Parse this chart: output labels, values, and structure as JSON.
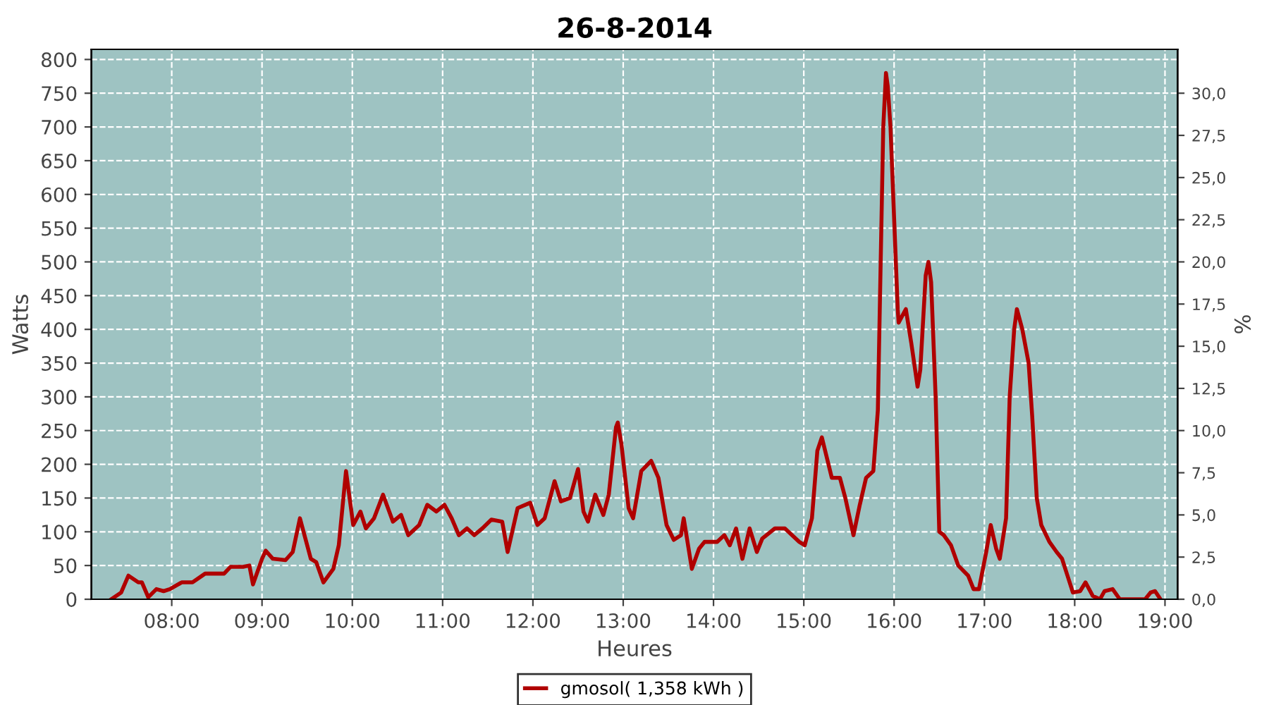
{
  "chart_data": {
    "type": "line",
    "title": "26-8-2014",
    "xlabel": "Heures",
    "ylabel": "Watts",
    "y2label": "%",
    "xlim": [
      7.11,
      19.14
    ],
    "xticks": [
      {
        "value": 8,
        "label": "08:00"
      },
      {
        "value": 9,
        "label": "09:00"
      },
      {
        "value": 10,
        "label": "10:00"
      },
      {
        "value": 11,
        "label": "11:00"
      },
      {
        "value": 12,
        "label": "12:00"
      },
      {
        "value": 13,
        "label": "13:00"
      },
      {
        "value": 14,
        "label": "14:00"
      },
      {
        "value": 15,
        "label": "15:00"
      },
      {
        "value": 16,
        "label": "16:00"
      },
      {
        "value": 17,
        "label": "17:00"
      },
      {
        "value": 18,
        "label": "18:00"
      },
      {
        "value": 19,
        "label": "19:00"
      }
    ],
    "ylim": [
      0,
      815
    ],
    "yticks": [
      0,
      50,
      100,
      150,
      200,
      250,
      300,
      350,
      400,
      450,
      500,
      550,
      600,
      650,
      700,
      750,
      800
    ],
    "y2lim": [
      0,
      32.6
    ],
    "y2ticks": [
      {
        "value": 0,
        "label": "0,0"
      },
      {
        "value": 2.5,
        "label": "2,5"
      },
      {
        "value": 5,
        "label": "5,0"
      },
      {
        "value": 7.5,
        "label": "7,5"
      },
      {
        "value": 10,
        "label": "10,0"
      },
      {
        "value": 12.5,
        "label": "12,5"
      },
      {
        "value": 15,
        "label": "15,0"
      },
      {
        "value": 17.5,
        "label": "17,5"
      },
      {
        "value": 20,
        "label": "20,0"
      },
      {
        "value": 22.5,
        "label": "22,5"
      },
      {
        "value": 25,
        "label": "25,0"
      },
      {
        "value": 27.5,
        "label": "27,5"
      },
      {
        "value": 30,
        "label": "30,0"
      }
    ],
    "grid": true,
    "legend": "bottom",
    "line_style": "solid",
    "marker": "none",
    "series": [
      {
        "name": "gmosol( 1,358 kWh )",
        "color": "#b00000",
        "x": [
          7.33,
          7.44,
          7.52,
          7.63,
          7.67,
          7.74,
          7.83,
          7.91,
          7.98,
          8.11,
          8.23,
          8.37,
          8.58,
          8.65,
          8.79,
          8.86,
          8.9,
          9.0,
          9.04,
          9.12,
          9.26,
          9.34,
          9.42,
          9.54,
          9.6,
          9.68,
          9.79,
          9.85,
          9.93,
          10.01,
          10.09,
          10.15,
          10.24,
          10.34,
          10.45,
          10.54,
          10.62,
          10.74,
          10.83,
          10.93,
          11.02,
          11.1,
          11.18,
          11.27,
          11.35,
          11.44,
          11.54,
          11.66,
          11.72,
          11.83,
          11.97,
          12.05,
          12.13,
          12.24,
          12.31,
          12.41,
          12.5,
          12.56,
          12.61,
          12.69,
          12.78,
          12.84,
          12.92,
          12.94,
          12.98,
          13.06,
          13.11,
          13.2,
          13.31,
          13.39,
          13.48,
          13.56,
          13.64,
          13.67,
          13.76,
          13.84,
          13.9,
          14.04,
          14.12,
          14.18,
          14.25,
          14.32,
          14.4,
          14.48,
          14.54,
          14.68,
          14.79,
          14.95,
          15.01,
          15.09,
          15.15,
          15.2,
          15.31,
          15.4,
          15.46,
          15.55,
          15.62,
          15.69,
          15.77,
          15.82,
          15.88,
          15.91,
          15.93,
          15.96,
          16.04,
          16.05,
          16.13,
          16.19,
          16.26,
          16.29,
          16.35,
          16.38,
          16.41,
          16.46,
          16.5,
          16.55,
          16.63,
          16.71,
          16.82,
          16.88,
          16.94,
          17.02,
          17.07,
          17.13,
          17.17,
          17.24,
          17.28,
          17.33,
          17.36,
          17.42,
          17.49,
          17.53,
          17.58,
          17.63,
          17.72,
          17.8,
          17.86,
          17.92,
          17.98,
          18.06,
          18.12,
          18.2,
          18.28,
          18.33,
          18.42,
          18.5,
          18.78,
          18.84,
          18.89,
          18.95
        ],
        "values": [
          0,
          10,
          35,
          25,
          25,
          3,
          15,
          12,
          15,
          25,
          25,
          38,
          38,
          48,
          48,
          50,
          22,
          60,
          72,
          60,
          58,
          70,
          120,
          60,
          55,
          25,
          45,
          80,
          190,
          110,
          130,
          105,
          120,
          155,
          115,
          125,
          95,
          110,
          140,
          130,
          140,
          120,
          95,
          105,
          95,
          105,
          118,
          115,
          70,
          135,
          143,
          110,
          120,
          175,
          145,
          150,
          193,
          130,
          115,
          155,
          125,
          155,
          255,
          262,
          230,
          135,
          120,
          190,
          205,
          180,
          110,
          88,
          95,
          120,
          45,
          75,
          85,
          85,
          95,
          80,
          105,
          60,
          105,
          70,
          90,
          105,
          105,
          85,
          80,
          120,
          220,
          240,
          180,
          180,
          150,
          95,
          140,
          180,
          190,
          280,
          700,
          780,
          760,
          700,
          430,
          410,
          430,
          380,
          315,
          340,
          480,
          500,
          470,
          300,
          100,
          95,
          80,
          50,
          35,
          15,
          15,
          70,
          110,
          75,
          60,
          120,
          300,
          400,
          430,
          400,
          350,
          270,
          150,
          110,
          85,
          70,
          60,
          35,
          10,
          12,
          25,
          5,
          0,
          12,
          15,
          0,
          0,
          10,
          12,
          0
        ]
      }
    ]
  }
}
